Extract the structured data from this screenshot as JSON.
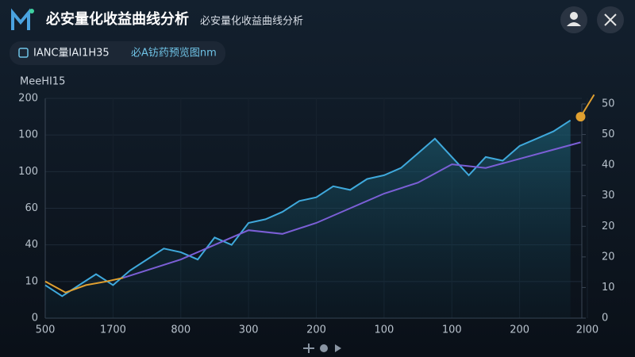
{
  "header": {
    "title": "必安量化收益曲线分析",
    "subtitle": "必安量化收益曲线分析"
  },
  "toolbar": {
    "chip1": "IANC量IAI1H35",
    "chip2": "必A钫药预览图nm"
  },
  "chart_data": {
    "type": "line",
    "ylabel": "MeeHI15",
    "xlim": [
      0,
      8
    ],
    "xticks": [
      {
        "value": 0,
        "label": "500"
      },
      {
        "value": 1,
        "label": "1700"
      },
      {
        "value": 2,
        "label": "800"
      },
      {
        "value": 3,
        "label": "300"
      },
      {
        "value": 4,
        "label": "200"
      },
      {
        "value": 5,
        "label": "100"
      },
      {
        "value": 6,
        "label": "100"
      },
      {
        "value": 7,
        "label": "200"
      },
      {
        "value": 8,
        "label": "2l00"
      }
    ],
    "ylim": [
      0,
      6
    ],
    "yticks": [
      {
        "value": 0,
        "label": "0"
      },
      {
        "value": 1,
        "label": "10"
      },
      {
        "value": 2,
        "label": "40"
      },
      {
        "value": 3,
        "label": "60"
      },
      {
        "value": 4,
        "label": "100"
      },
      {
        "value": 5,
        "label": "100"
      },
      {
        "value": 6,
        "label": "200"
      }
    ],
    "y2lim": [
      0,
      7
    ],
    "y2ticks": [
      {
        "value": 0,
        "label": "0"
      },
      {
        "value": 1,
        "label": "10"
      },
      {
        "value": 2,
        "label": "20"
      },
      {
        "value": 3,
        "label": "20"
      },
      {
        "value": 4,
        "label": "30"
      },
      {
        "value": 5,
        "label": "40"
      },
      {
        "value": 6,
        "label": "50"
      },
      {
        "value": 7,
        "label": "50"
      }
    ],
    "grid": true,
    "series": [
      {
        "color": "#3fa9dc",
        "area": true,
        "x": [
          0,
          0.25,
          0.5,
          0.75,
          1,
          1.25,
          1.5,
          1.75,
          2,
          2.25,
          2.5,
          2.75,
          3,
          3.25,
          3.5,
          3.75,
          4,
          4.25,
          4.5,
          4.75,
          5,
          5.25,
          5.5,
          5.75,
          6,
          6.25,
          6.5,
          6.75,
          7,
          7.25,
          7.5,
          7.75
        ],
        "values": [
          0.9,
          0.6,
          0.9,
          1.2,
          0.9,
          1.3,
          1.6,
          1.9,
          1.8,
          1.6,
          2.2,
          2.0,
          2.6,
          2.7,
          2.9,
          3.2,
          3.3,
          3.6,
          3.5,
          3.8,
          3.9,
          4.1,
          4.5,
          4.9,
          4.4,
          3.9,
          4.4,
          4.3,
          4.7,
          4.9,
          5.1,
          5.4
        ]
      },
      {
        "color": "#7b5fd6",
        "x": [
          1.15,
          2,
          3,
          3.5,
          4,
          4.5,
          5,
          5.5,
          6,
          6.5,
          7,
          7.5,
          7.9
        ],
        "values": [
          1.1,
          1.6,
          2.4,
          2.3,
          2.6,
          3.0,
          3.4,
          3.7,
          4.2,
          4.1,
          4.35,
          4.6,
          4.8
        ]
      },
      {
        "color": "#e0a030",
        "x": [
          0,
          0.3,
          0.6,
          0.9,
          1.15
        ],
        "values": [
          1.0,
          0.7,
          0.9,
          1.0,
          1.1
        ]
      },
      {
        "color": "#e0a030",
        "marker": true,
        "x": [
          7.9,
          8.1
        ],
        "values": [
          5.5,
          6.1
        ]
      }
    ]
  }
}
